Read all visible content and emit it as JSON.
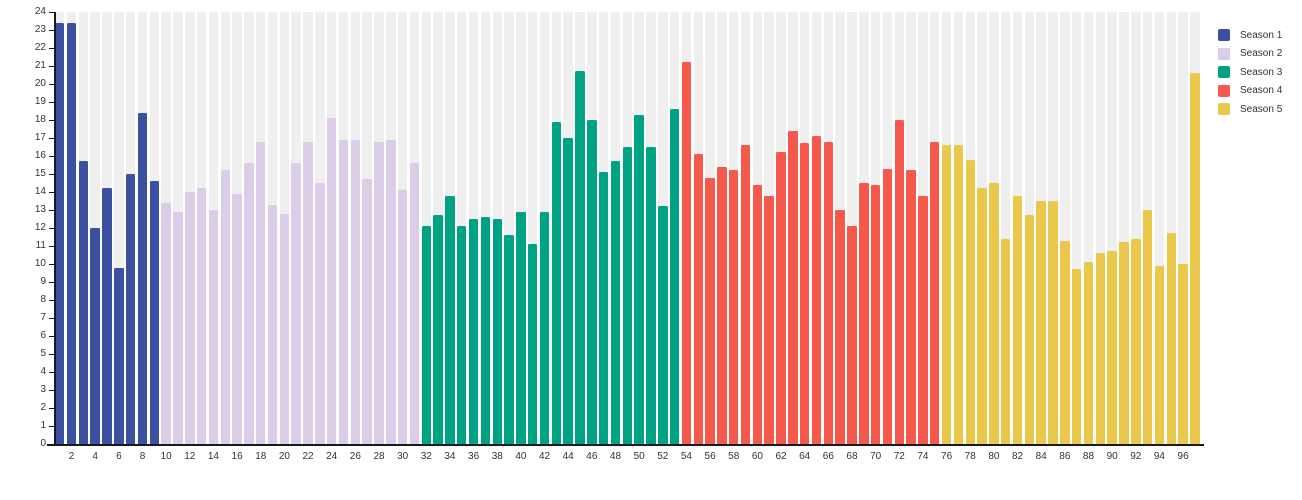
{
  "chart_data": {
    "type": "bar",
    "title": "",
    "xlabel": "",
    "ylabel": "",
    "ylim": [
      0,
      24
    ],
    "y_tick_step": 1,
    "x_tick_step": 2,
    "x_first": 1,
    "x_last": 97,
    "grid": "vertical-stripes",
    "legend_position": "top-right",
    "series": [
      {
        "name": "Season 1",
        "color": "#3c50a2",
        "first_episode": 1,
        "values": [
          23.4,
          23.4,
          15.7,
          12.0,
          14.2,
          9.8,
          15.0,
          18.4,
          14.6
        ]
      },
      {
        "name": "Season 2",
        "color": "#dbcde8",
        "first_episode": 10,
        "values": [
          13.4,
          12.9,
          14.0,
          14.2,
          13.0,
          15.2,
          13.9,
          15.6,
          16.8,
          13.3,
          12.8,
          15.6,
          16.8,
          14.5,
          18.1,
          16.9,
          16.9,
          14.7,
          16.8,
          16.9,
          14.1,
          15.6
        ]
      },
      {
        "name": "Season 3",
        "color": "#00a284",
        "first_episode": 32,
        "values": [
          12.1,
          12.7,
          13.8,
          12.1,
          12.5,
          12.6,
          12.5,
          11.6,
          12.9,
          11.1,
          12.9,
          17.9,
          17.0,
          20.7,
          18.0,
          15.1,
          15.7,
          16.5,
          18.3,
          16.5,
          13.2,
          18.6
        ]
      },
      {
        "name": "Season 4",
        "color": "#f4594b",
        "first_episode": 54,
        "values": [
          21.2,
          16.1,
          14.8,
          15.4,
          15.2,
          16.6,
          14.4,
          13.8,
          16.2,
          17.4,
          16.7,
          17.1,
          16.8,
          13.0,
          12.1,
          14.5,
          14.4,
          15.3,
          18.0,
          15.2,
          13.8,
          16.8
        ]
      },
      {
        "name": "Season 5",
        "color": "#e9c84c",
        "first_episode": 76,
        "values": [
          16.6,
          16.6,
          15.8,
          14.2,
          14.5,
          11.4,
          13.8,
          12.7,
          13.5,
          13.5,
          11.3,
          9.7,
          10.1,
          10.6,
          10.7,
          11.2,
          11.4,
          13.0,
          9.9,
          11.7,
          10.0,
          20.6
        ]
      }
    ]
  },
  "legend": {
    "entries": [
      "Season 1",
      "Season 2",
      "Season 3",
      "Season 4",
      "Season 5"
    ]
  },
  "colors": {
    "background": "#ffffff",
    "stripe": "#efefef",
    "axis_line": "#15191d",
    "tick_label": "#333333"
  }
}
